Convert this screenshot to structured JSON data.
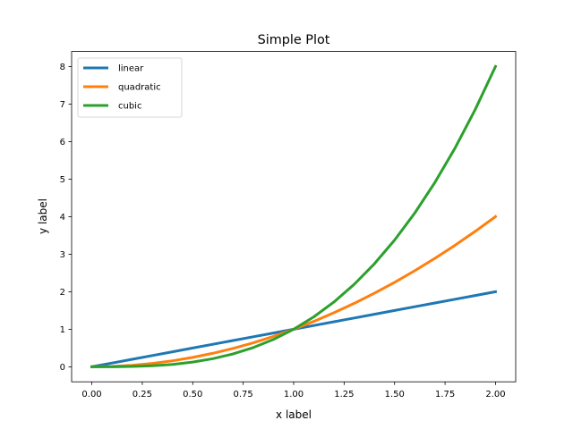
{
  "chart_data": {
    "type": "line",
    "title": "Simple Plot",
    "xlabel": "x label",
    "ylabel": "y label",
    "xlim": [
      -0.1,
      2.1
    ],
    "ylim": [
      -0.4,
      8.4
    ],
    "xticks": [
      "0.00",
      "0.25",
      "0.50",
      "0.75",
      "1.00",
      "1.25",
      "1.50",
      "1.75",
      "2.00"
    ],
    "xtick_values": [
      0,
      0.25,
      0.5,
      0.75,
      1,
      1.25,
      1.5,
      1.75,
      2
    ],
    "yticks": [
      "0",
      "1",
      "2",
      "3",
      "4",
      "5",
      "6",
      "7",
      "8"
    ],
    "ytick_values": [
      0,
      1,
      2,
      3,
      4,
      5,
      6,
      7,
      8
    ],
    "grid": false,
    "legend_position": "upper-left",
    "x": [
      0,
      0.1,
      0.2,
      0.3,
      0.4,
      0.5,
      0.6,
      0.7,
      0.8,
      0.9,
      1,
      1.1,
      1.2,
      1.3,
      1.4,
      1.5,
      1.6,
      1.7,
      1.8,
      1.9,
      2
    ],
    "series": [
      {
        "name": "linear",
        "color": "#1f77b4",
        "values": [
          0,
          0.1,
          0.2,
          0.3,
          0.4,
          0.5,
          0.6,
          0.7,
          0.8,
          0.9,
          1,
          1.1,
          1.2,
          1.3,
          1.4,
          1.5,
          1.6,
          1.7,
          1.8,
          1.9,
          2
        ]
      },
      {
        "name": "quadratic",
        "color": "#ff7f0e",
        "values": [
          0,
          0.01,
          0.04,
          0.09,
          0.16,
          0.25,
          0.36,
          0.49,
          0.64,
          0.81,
          1,
          1.21,
          1.44,
          1.69,
          1.96,
          2.25,
          2.56,
          2.89,
          3.24,
          3.61,
          4
        ]
      },
      {
        "name": "cubic",
        "color": "#2ca02c",
        "values": [
          0,
          0.001,
          0.008,
          0.027,
          0.064,
          0.125,
          0.216,
          0.343,
          0.512,
          0.729,
          1,
          1.331,
          1.728,
          2.197,
          2.744,
          3.375,
          4.096,
          4.913,
          5.832,
          6.859,
          8
        ]
      }
    ]
  }
}
